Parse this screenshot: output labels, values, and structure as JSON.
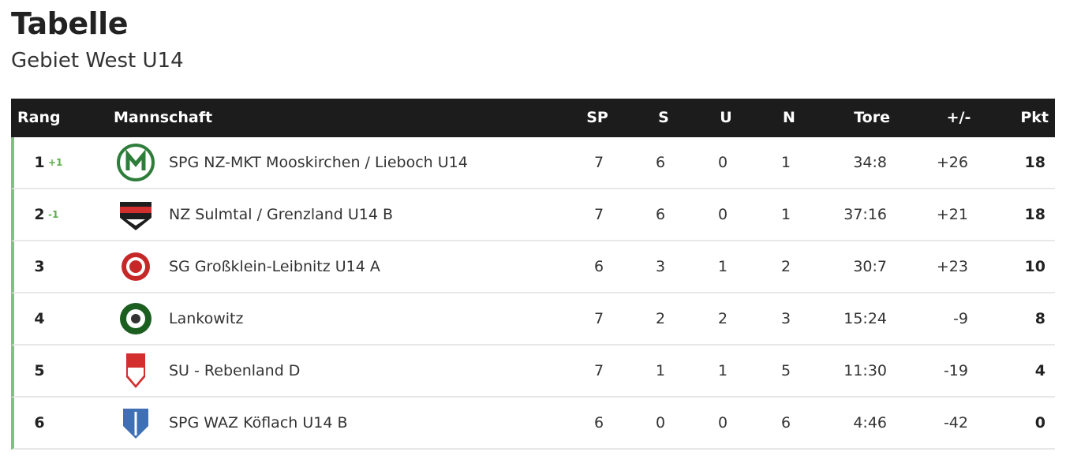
{
  "header": {
    "title": "Tabelle",
    "subtitle": "Gebiet West U14"
  },
  "table": {
    "columns": {
      "rank": "Rang",
      "team": "Mannschaft",
      "sp": "SP",
      "s": "S",
      "u": "U",
      "n": "N",
      "tore": "Tore",
      "diff": "+/-",
      "pkt": "Pkt"
    },
    "rows": [
      {
        "rank": 1,
        "trend": "+1",
        "team": "SPG NZ-MKT Mooskirchen / Lieboch U14",
        "sp": 7,
        "s": 6,
        "u": 0,
        "n": 1,
        "tore": "34:8",
        "diff": "+26",
        "pkt": 18
      },
      {
        "rank": 2,
        "trend": "-1",
        "team": "NZ Sulmtal / Grenzland U14 B",
        "sp": 7,
        "s": 6,
        "u": 0,
        "n": 1,
        "tore": "37:16",
        "diff": "+21",
        "pkt": 18
      },
      {
        "rank": 3,
        "team": "SG Großklein-Leibnitz U14 A",
        "sp": 6,
        "s": 3,
        "u": 1,
        "n": 2,
        "tore": "30:7",
        "diff": "+23",
        "pkt": 10
      },
      {
        "rank": 4,
        "team": "Lankowitz",
        "sp": 7,
        "s": 2,
        "u": 2,
        "n": 3,
        "tore": "15:24",
        "diff": "-9",
        "pkt": 8
      },
      {
        "rank": 5,
        "team": "SU - Rebenland D",
        "sp": 7,
        "s": 1,
        "u": 1,
        "n": 5,
        "tore": "11:30",
        "diff": "-19",
        "pkt": 4
      },
      {
        "rank": 6,
        "team": "SPG WAZ Köflach U14 B",
        "sp": 6,
        "s": 0,
        "u": 0,
        "n": 6,
        "tore": "4:46",
        "diff": "-42",
        "pkt": 0
      }
    ]
  }
}
